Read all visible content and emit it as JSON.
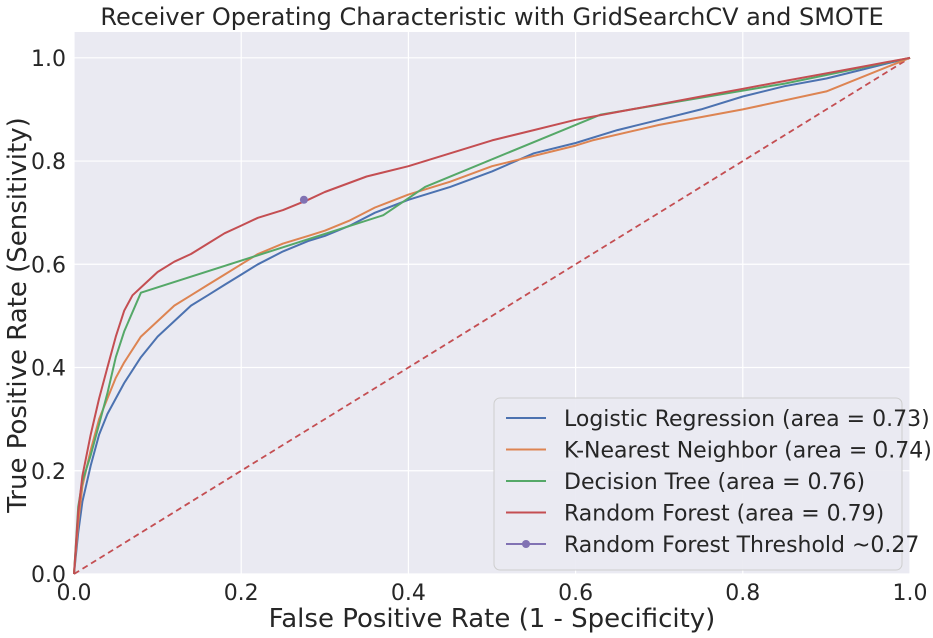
{
  "chart_data": {
    "type": "line",
    "title": "Receiver Operating Characteristic with GridSearchCV and SMOTE",
    "xlabel": "False Positive Rate (1 - Specificity)",
    "ylabel": "True Positive Rate (Sensitivity)",
    "xlim": [
      0.0,
      1.0
    ],
    "ylim": [
      0.0,
      1.05
    ],
    "xticks": [
      "0.0",
      "0.2",
      "0.4",
      "0.6",
      "0.8",
      "1.0"
    ],
    "yticks": [
      "0.0",
      "0.2",
      "0.4",
      "0.6",
      "0.8",
      "1.0"
    ],
    "grid": true,
    "legend_position": "lower-right",
    "background": "#eaeaf2",
    "series": [
      {
        "name": "Logistic Regression (area = 0.73)",
        "color": "#4c72b0",
        "x": [
          0.0,
          0.005,
          0.01,
          0.02,
          0.03,
          0.04,
          0.05,
          0.06,
          0.08,
          0.1,
          0.12,
          0.14,
          0.16,
          0.18,
          0.2,
          0.22,
          0.25,
          0.28,
          0.3,
          0.33,
          0.36,
          0.4,
          0.45,
          0.5,
          0.55,
          0.6,
          0.65,
          0.7,
          0.75,
          0.8,
          0.85,
          0.9,
          0.95,
          1.0
        ],
        "y": [
          0.0,
          0.08,
          0.14,
          0.21,
          0.27,
          0.31,
          0.34,
          0.37,
          0.42,
          0.46,
          0.49,
          0.52,
          0.54,
          0.56,
          0.58,
          0.6,
          0.625,
          0.645,
          0.655,
          0.675,
          0.7,
          0.725,
          0.75,
          0.78,
          0.815,
          0.835,
          0.86,
          0.88,
          0.9,
          0.925,
          0.945,
          0.96,
          0.98,
          1.0
        ]
      },
      {
        "name": "K-Nearest Neighbor (area = 0.74)",
        "color": "#dd8452",
        "x": [
          0.0,
          0.005,
          0.01,
          0.02,
          0.03,
          0.04,
          0.05,
          0.06,
          0.08,
          0.1,
          0.12,
          0.14,
          0.16,
          0.18,
          0.2,
          0.22,
          0.25,
          0.28,
          0.3,
          0.33,
          0.36,
          0.4,
          0.45,
          0.5,
          0.55,
          0.6,
          0.62,
          0.7,
          0.8,
          0.9,
          1.0
        ],
        "y": [
          0.0,
          0.1,
          0.17,
          0.24,
          0.3,
          0.34,
          0.38,
          0.41,
          0.46,
          0.49,
          0.52,
          0.54,
          0.56,
          0.58,
          0.6,
          0.62,
          0.64,
          0.655,
          0.665,
          0.685,
          0.71,
          0.735,
          0.76,
          0.79,
          0.81,
          0.83,
          0.84,
          0.87,
          0.9,
          0.935,
          1.0
        ]
      },
      {
        "name": "Decision Tree (area = 0.76)",
        "color": "#55a868",
        "x": [
          0.0,
          0.005,
          0.01,
          0.02,
          0.03,
          0.04,
          0.05,
          0.06,
          0.08,
          0.37,
          0.42,
          0.63,
          0.85,
          1.0
        ],
        "y": [
          0.0,
          0.13,
          0.18,
          0.23,
          0.29,
          0.35,
          0.42,
          0.47,
          0.545,
          0.695,
          0.75,
          0.89,
          0.95,
          1.0
        ]
      },
      {
        "name": "Random Forest (area = 0.79)",
        "color": "#c44e52",
        "x": [
          0.0,
          0.005,
          0.01,
          0.02,
          0.03,
          0.04,
          0.05,
          0.06,
          0.07,
          0.08,
          0.1,
          0.12,
          0.14,
          0.16,
          0.18,
          0.2,
          0.22,
          0.25,
          0.28,
          0.3,
          0.35,
          0.4,
          0.45,
          0.5,
          0.55,
          0.6,
          0.65,
          0.7,
          0.75,
          0.8,
          0.85,
          0.9,
          0.95,
          1.0
        ],
        "y": [
          0.0,
          0.12,
          0.19,
          0.27,
          0.34,
          0.4,
          0.46,
          0.51,
          0.54,
          0.555,
          0.585,
          0.605,
          0.62,
          0.64,
          0.66,
          0.675,
          0.69,
          0.705,
          0.725,
          0.74,
          0.77,
          0.79,
          0.815,
          0.84,
          0.86,
          0.88,
          0.895,
          0.91,
          0.925,
          0.94,
          0.955,
          0.97,
          0.985,
          1.0
        ]
      },
      {
        "name": "Random Forest Threshold ~0.27",
        "color": "#8172b3",
        "marker": "circle",
        "x": [
          0.275
        ],
        "y": [
          0.725
        ]
      }
    ],
    "reference_line": {
      "x": [
        0.0,
        1.0
      ],
      "y": [
        0.0,
        1.0
      ],
      "color": "#c44e52",
      "style": "dashed"
    }
  }
}
